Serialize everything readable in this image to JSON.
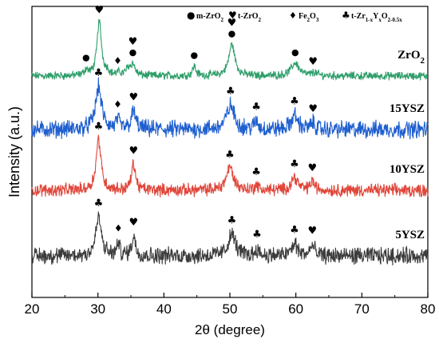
{
  "chart_data": {
    "type": "line",
    "xlabel": "2θ (degree)",
    "ylabel": "Intensity (a.u.)",
    "xlim": [
      20,
      80
    ],
    "xticks": [
      20,
      30,
      40,
      50,
      60,
      70,
      80
    ],
    "yticks_shown": false,
    "grid": false,
    "legend": {
      "placement": "top-right",
      "entries": [
        {
          "symbol": "●",
          "base": "m-ZrO",
          "sub": "2",
          "sup": ""
        },
        {
          "symbol": "♥",
          "base": "t-ZrO",
          "sub": "2",
          "sup": ""
        },
        {
          "symbol": "♦",
          "base": "Fe",
          "sub": "2",
          "mid": "O",
          "sub2": "3"
        },
        {
          "symbol": "♣",
          "base": "t-Zr",
          "sub": "1-x",
          "mid": "Y",
          "sub2": "x",
          "mid2": "O",
          "sub3": "2-0.5x"
        }
      ]
    },
    "series": [
      {
        "name": "ZrO2",
        "label_base": "ZrO",
        "label_sub": "2",
        "color": "#2e9e6a",
        "offset": 3,
        "noise": 0.06,
        "peaks": [
          [
            28.2,
            0.1,
            0.35
          ],
          [
            30.2,
            1.0,
            0.4
          ],
          [
            31.4,
            0.07,
            0.35
          ],
          [
            33.2,
            0.05,
            0.35
          ],
          [
            34.6,
            0.12,
            0.4
          ],
          [
            35.3,
            0.2,
            0.4
          ],
          [
            44.6,
            0.18,
            0.3
          ],
          [
            50.3,
            0.58,
            0.55
          ],
          [
            59.9,
            0.24,
            0.7
          ],
          [
            62.8,
            0.06,
            0.4
          ]
        ],
        "markers": [
          {
            "symbol": "●",
            "x": 28.2
          },
          {
            "symbol": "♥",
            "x": 30.2
          },
          {
            "symbol": "♦",
            "x": 33.0
          },
          {
            "symbol": "●",
            "x": 35.3
          },
          {
            "symbol": "♥",
            "x": 35.3
          },
          {
            "symbol": "●",
            "x": 44.6
          },
          {
            "symbol": "●",
            "x": 50.3
          },
          {
            "symbol": "♥",
            "x": 50.3
          },
          {
            "symbol": "●",
            "x": 59.9
          },
          {
            "symbol": "♥",
            "x": 62.6
          }
        ]
      },
      {
        "name": "15YSZ",
        "label_base": "15YSZ",
        "label_sub": "",
        "color": "#1f5fcf",
        "offset": 2,
        "noise": 0.14,
        "peaks": [
          [
            30.1,
            0.85,
            0.55
          ],
          [
            33.0,
            0.18,
            0.3
          ],
          [
            35.4,
            0.35,
            0.4
          ],
          [
            50.1,
            0.48,
            0.7
          ],
          [
            54.0,
            0.15,
            0.35
          ],
          [
            59.8,
            0.28,
            0.6
          ],
          [
            62.6,
            0.12,
            0.4
          ]
        ],
        "markers": [
          {
            "symbol": "♣",
            "x": 30.1
          },
          {
            "symbol": "♦",
            "x": 33.0
          },
          {
            "symbol": "♥",
            "x": 35.4
          },
          {
            "symbol": "♣",
            "x": 50.1
          },
          {
            "symbol": "♣",
            "x": 54.0
          },
          {
            "symbol": "♣",
            "x": 59.8
          },
          {
            "symbol": "♥",
            "x": 62.6
          }
        ]
      },
      {
        "name": "10YSZ",
        "label_base": "10YSZ",
        "label_sub": "",
        "color": "#e0463a",
        "offset": 1,
        "noise": 0.1,
        "peaks": [
          [
            30.1,
            1.0,
            0.45
          ],
          [
            35.4,
            0.52,
            0.35
          ],
          [
            50.0,
            0.45,
            0.65
          ],
          [
            54.0,
            0.1,
            0.3
          ],
          [
            59.8,
            0.26,
            0.55
          ],
          [
            62.5,
            0.18,
            0.35
          ]
        ],
        "markers": [
          {
            "symbol": "♣",
            "x": 30.1
          },
          {
            "symbol": "♥",
            "x": 35.4
          },
          {
            "symbol": "♣",
            "x": 50.0
          },
          {
            "symbol": "♣",
            "x": 54.0
          },
          {
            "symbol": "♣",
            "x": 59.8
          },
          {
            "symbol": "♥",
            "x": 62.5
          }
        ]
      },
      {
        "name": "5YSZ",
        "label_base": "5YSZ",
        "label_sub": "",
        "color": "#3c3c3c",
        "offset": 0,
        "noise": 0.14,
        "peaks": [
          [
            30.1,
            0.8,
            0.5
          ],
          [
            33.1,
            0.25,
            0.25
          ],
          [
            35.4,
            0.4,
            0.35
          ],
          [
            50.3,
            0.45,
            0.65
          ],
          [
            54.1,
            0.14,
            0.3
          ],
          [
            59.8,
            0.24,
            0.55
          ],
          [
            62.5,
            0.22,
            0.35
          ]
        ],
        "markers": [
          {
            "symbol": "♣",
            "x": 30.1
          },
          {
            "symbol": "♦",
            "x": 33.1
          },
          {
            "symbol": "♥",
            "x": 35.4
          },
          {
            "symbol": "♣",
            "x": 50.3
          },
          {
            "symbol": "♣",
            "x": 54.1
          },
          {
            "symbol": "♣",
            "x": 59.8
          },
          {
            "symbol": "♥",
            "x": 62.5
          }
        ]
      }
    ]
  }
}
